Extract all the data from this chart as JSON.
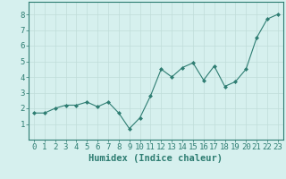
{
  "x": [
    0,
    1,
    2,
    3,
    4,
    5,
    6,
    7,
    8,
    9,
    10,
    11,
    12,
    13,
    14,
    15,
    16,
    17,
    18,
    19,
    20,
    21,
    22,
    23
  ],
  "y": [
    1.7,
    1.7,
    2.0,
    2.2,
    2.2,
    2.4,
    2.1,
    2.4,
    1.7,
    0.7,
    1.4,
    2.8,
    4.5,
    4.0,
    4.6,
    4.9,
    3.8,
    4.7,
    3.4,
    3.7,
    4.5,
    6.5,
    7.7,
    8.0
  ],
  "xlabel": "Humidex (Indice chaleur)",
  "ylim": [
    0,
    8.8
  ],
  "xlim": [
    -0.5,
    23.5
  ],
  "yticks": [
    1,
    2,
    3,
    4,
    5,
    6,
    7,
    8
  ],
  "xticks": [
    0,
    1,
    2,
    3,
    4,
    5,
    6,
    7,
    8,
    9,
    10,
    11,
    12,
    13,
    14,
    15,
    16,
    17,
    18,
    19,
    20,
    21,
    22,
    23
  ],
  "line_color": "#2e7d72",
  "marker_color": "#2e7d72",
  "bg_color": "#d6f0ee",
  "grid_color": "#c0ddd9",
  "spine_color": "#2e7d72",
  "axis_color": "#2e7d72",
  "xlabel_fontsize": 7.5,
  "tick_fontsize": 6.5
}
